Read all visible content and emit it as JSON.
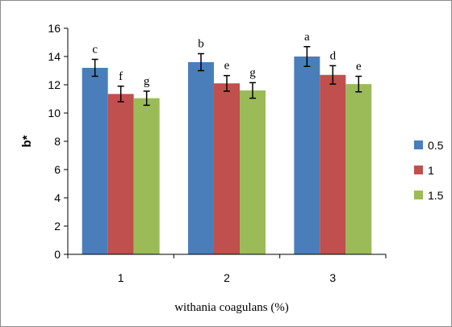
{
  "chart_data": {
    "type": "bar",
    "categories": [
      "1",
      "2",
      "3"
    ],
    "series": [
      {
        "name": "0.5",
        "color": "#4a7ebb",
        "values": [
          13.2,
          13.6,
          14.0
        ],
        "errors": [
          0.6,
          0.6,
          0.7
        ],
        "labels": [
          "c",
          "b",
          "a"
        ]
      },
      {
        "name": "1",
        "color": "#c0504d",
        "values": [
          11.35,
          12.1,
          12.7
        ],
        "errors": [
          0.55,
          0.55,
          0.65
        ],
        "labels": [
          "f",
          "e",
          "d"
        ]
      },
      {
        "name": "1.5",
        "color": "#9bbb59",
        "values": [
          11.05,
          11.6,
          12.05
        ],
        "errors": [
          0.5,
          0.55,
          0.55
        ],
        "labels": [
          "g",
          "g",
          "e"
        ]
      }
    ],
    "ylabel": "b*",
    "xlabel": "withania coagulans (%)",
    "ylim": [
      0,
      16
    ],
    "yticks": [
      0,
      2,
      4,
      6,
      8,
      10,
      12,
      14,
      16
    ],
    "grid": false,
    "legend": "right"
  }
}
